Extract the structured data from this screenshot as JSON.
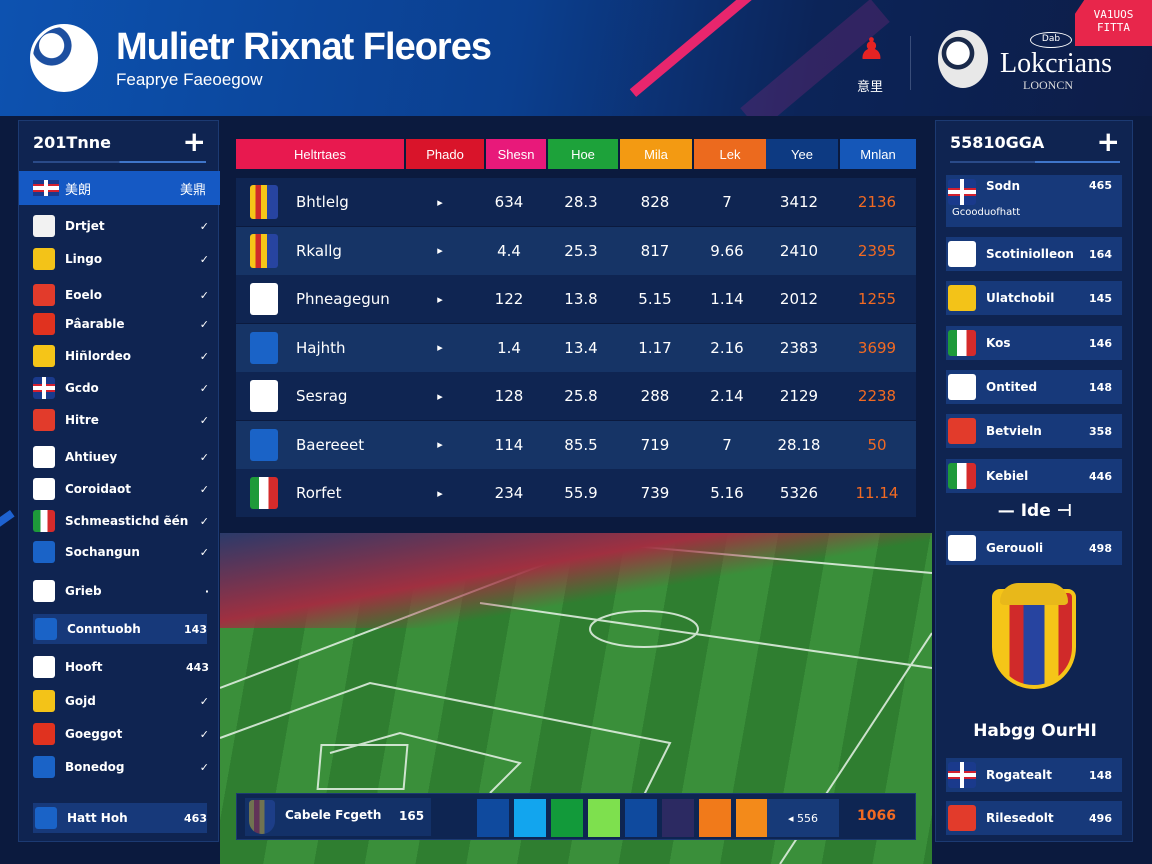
{
  "header": {
    "title": "Mulietr Rixnat Fleores",
    "subtitle": "Feaprye Faeoegow",
    "person_label": "意里",
    "brand": "Lokcrians",
    "brand_sub": "LOONCN",
    "brand_oval": "Dab",
    "badge": "VA1UOS FITTA"
  },
  "left_panel": {
    "title": "201Tnne",
    "add": "+",
    "selected": {
      "label": "美朗",
      "value": "美鼎"
    },
    "items": [
      {
        "label": "Drtjet",
        "value": "✓",
        "icon": "crest-white",
        "color": "#f2f2f2"
      },
      {
        "label": "Lingo",
        "value": "✓",
        "icon": "crest-yellow",
        "color": "#f3c318"
      },
      {
        "label": "Eoelo",
        "value": "✓",
        "icon": "crest-red",
        "color": "#e23b2b"
      },
      {
        "label": "Pâarable",
        "value": "✓",
        "icon": "crest-red",
        "color": "#e0321f"
      },
      {
        "label": "Hiñlordeo",
        "value": "✓",
        "icon": "crest-catalan",
        "color": "#f5c518"
      },
      {
        "label": "Gcdo",
        "value": "✓",
        "icon": "uk-flag",
        "color": "uk"
      },
      {
        "label": "Hitre",
        "value": "✓",
        "icon": "crest-red",
        "color": "#e23b2b"
      },
      {
        "label": "Ahtiuey",
        "value": "✓",
        "icon": "japan-flag",
        "color": "#ffffff"
      },
      {
        "label": "Coroidaot",
        "value": "✓",
        "icon": "flag-red-white",
        "color": "#ffffff"
      },
      {
        "label": "Schmeastichd ẽén",
        "value": "✓",
        "icon": "italy-flag",
        "color": "it"
      },
      {
        "label": "Sochangun",
        "value": "✓",
        "icon": "crest-blue",
        "color": "#1a63c7"
      },
      {
        "label": "Grieb",
        "value": "·",
        "icon": "crest-white-blue",
        "color": "#ffffff"
      },
      {
        "label": "Conntuobh",
        "value": "143",
        "icon": "crest-blue",
        "color": "#1a63c7",
        "card": true
      },
      {
        "label": "Hooft",
        "value": "443",
        "icon": "crest-white-blue",
        "color": "#ffffff"
      },
      {
        "label": "Gojd",
        "value": "✓",
        "icon": "crest-yellow",
        "color": "#f3c318"
      },
      {
        "label": "Goeggot",
        "value": "✓",
        "icon": "crest-red",
        "color": "#e0321f"
      },
      {
        "label": "Bonedog",
        "value": "✓",
        "icon": "crest-blue",
        "color": "#1a63c7"
      },
      {
        "label": "Hatt Hoh",
        "value": "463",
        "icon": "crest-blue",
        "color": "#1a63c7",
        "card": true
      }
    ]
  },
  "table": {
    "headers": [
      {
        "label": "Heltrtaes",
        "color": "#e8194f"
      },
      {
        "label": "Phado",
        "color": "#d9142a"
      },
      {
        "label": "Shesn",
        "color": "#e8197a"
      },
      {
        "label": "Hoe",
        "color": "#1da23a"
      },
      {
        "label": "Mila",
        "color": "#f39a12"
      },
      {
        "label": "Lek",
        "color": "#ec6a1e"
      },
      {
        "label": "Yee",
        "color": "#0d3a82"
      },
      {
        "label": "Mnlan",
        "color": "#1557b8"
      }
    ],
    "rows": [
      {
        "team": "Bhtlelg",
        "icon": "crest-catalan",
        "cells": [
          "634",
          "28.3",
          "828",
          "7",
          "3412"
        ],
        "highlight": "2136"
      },
      {
        "team": "Rkallg",
        "icon": "crest-catalan",
        "cells": [
          "4.4",
          "25.3",
          "817",
          "9.66",
          "2410"
        ],
        "highlight": "2395"
      },
      {
        "team": "Phneagegun",
        "icon": "crest-white-blue",
        "cells": [
          "122",
          "13.8",
          "5.15",
          "1.14",
          "2012"
        ],
        "highlight": "1255"
      },
      {
        "team": "Hajhth",
        "icon": "crest-blue",
        "cells": [
          "1.4",
          "13.4",
          "1.17",
          "2.16",
          "2383"
        ],
        "highlight": "3699"
      },
      {
        "team": "Sesrag",
        "icon": "crest-white-blue",
        "cells": [
          "128",
          "25.8",
          "288",
          "2.14",
          "2129"
        ],
        "highlight": "2238"
      },
      {
        "team": "Baereeet",
        "icon": "crest-blue",
        "cells": [
          "114",
          "85.5",
          "719",
          "7",
          "28.18"
        ],
        "highlight": "50"
      },
      {
        "team": "Rorfet",
        "icon": "italy-flag",
        "cells": [
          "234",
          "55.9",
          "739",
          "5.16",
          "5326"
        ],
        "highlight": "11.14"
      }
    ],
    "arrow": "▸",
    "highlight_color": "#f26a22"
  },
  "bottom_bar": {
    "team": "Cabele Fcgeth",
    "value": "165",
    "swatches": [
      "#0f4a9e",
      "#12a5ee",
      "#129a3a",
      "#7ee04e",
      "#0f4a9e",
      "#2c2a62",
      "#f17a1a",
      "#f38a1a"
    ],
    "stat": "◂ 556",
    "highlight": "1066"
  },
  "right_panel": {
    "title": "55810GGA",
    "add": "+",
    "items": [
      {
        "label": "Sodn",
        "value": "465",
        "sub": "Gcooduofhatt",
        "icon": "uk-flag",
        "color": "uk"
      },
      {
        "label": "Scotiniolleon",
        "value": "164",
        "icon": "crest-white",
        "color": "#ffffff"
      },
      {
        "label": "Ulatchobil",
        "value": "145",
        "icon": "crest-yellow",
        "color": "#f3c318"
      },
      {
        "label": "Kos",
        "value": "146",
        "icon": "italy-flag",
        "color": "it"
      },
      {
        "label": "Ontited",
        "value": "148",
        "icon": "flag-red-white",
        "color": "#ffffff"
      },
      {
        "label": "Betvieln",
        "value": "358",
        "icon": "crest-red",
        "color": "#e23b2b"
      },
      {
        "label": "Kebiel",
        "value": "446",
        "icon": "italy-flag",
        "color": "it"
      },
      {
        "label": "Gerouoli",
        "value": "498",
        "icon": "crest-white",
        "color": "#ffffff"
      },
      {
        "label": "Rogatealt",
        "value": "148",
        "icon": "uk-flag",
        "color": "uk"
      },
      {
        "label": "Rilesedolt",
        "value": "496",
        "icon": "crest-red",
        "color": "#e23b2b"
      }
    ],
    "section_label": "Ide",
    "crest_caption": "Habgg OurHI"
  }
}
